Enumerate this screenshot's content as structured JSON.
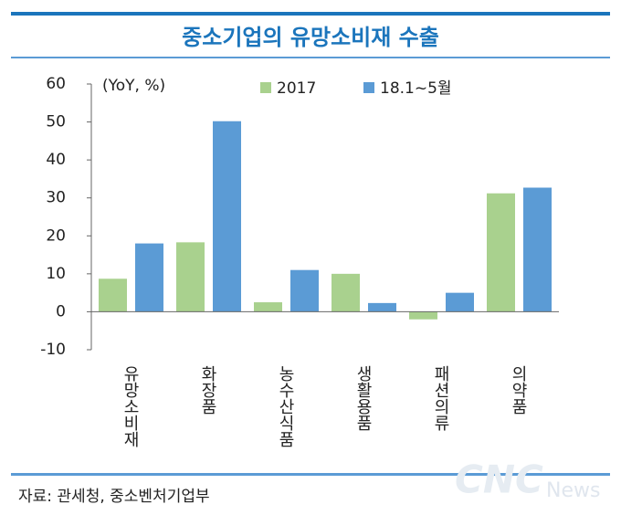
{
  "chart_data": {
    "type": "bar",
    "title": "중소기업의 유망소비재 수출",
    "y_label": "(YoY, %)",
    "categories": [
      "유망소비재",
      "화장품",
      "농수산식품",
      "생활용품",
      "패션의류",
      "의약품"
    ],
    "series": [
      {
        "name": "2017",
        "color": "#a9d18e",
        "values": [
          8.7,
          18.3,
          2.5,
          10.0,
          -2.0,
          31.2
        ]
      },
      {
        "name": "18.1~5월",
        "color": "#5b9bd5",
        "values": [
          18.0,
          50.2,
          11.0,
          2.3,
          5.0,
          32.7
        ]
      }
    ],
    "ylim": [
      -10,
      60
    ],
    "yticks": [
      -10,
      0,
      10,
      20,
      30,
      40,
      50,
      60
    ],
    "grid": false,
    "legend": "top",
    "source": "자료: 관세청, 중소벤처기업부",
    "watermark": [
      "CNC",
      "News"
    ]
  }
}
